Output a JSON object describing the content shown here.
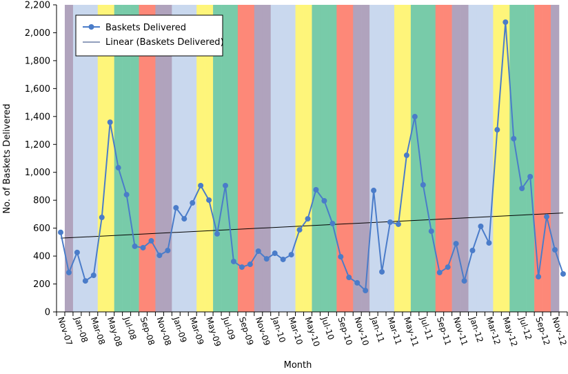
{
  "chart_data": {
    "type": "line",
    "title": "",
    "xlabel": "Month",
    "ylabel": "No. of Baskets Delivered",
    "ylim": [
      0,
      2200
    ],
    "ytick_step": 200,
    "yticks": [
      "0",
      "200",
      "400",
      "600",
      "800",
      "1,000",
      "1,200",
      "1,400",
      "1,600",
      "1,800",
      "2,000",
      "2,200"
    ],
    "grid": false,
    "legend_position": "top-left",
    "categories": [
      "Nov-07",
      "Dec-07",
      "Jan-08",
      "Feb-08",
      "Mar-08",
      "Apr-08",
      "May-08",
      "Jun-08",
      "Jul-08",
      "Aug-08",
      "Sep-08",
      "Oct-08",
      "Nov-08",
      "Dec-08",
      "Jan-09",
      "Feb-09",
      "Mar-09",
      "Apr-09",
      "May-09",
      "Jun-09",
      "Jul-09",
      "Aug-09",
      "Sep-09",
      "Oct-09",
      "Nov-09",
      "Dec-09",
      "Jan-10",
      "Feb-10",
      "Mar-10",
      "Apr-10",
      "May-10",
      "Jun-10",
      "Jul-10",
      "Aug-10",
      "Sep-10",
      "Oct-10",
      "Nov-10",
      "Dec-10",
      "Jan-11",
      "Feb-11",
      "Mar-11",
      "Apr-11",
      "May-11",
      "Jun-11",
      "Jul-11",
      "Aug-11",
      "Sep-11",
      "Oct-11",
      "Nov-11",
      "Dec-11",
      "Jan-12",
      "Feb-12",
      "Mar-12",
      "Apr-12",
      "May-12",
      "Jun-12",
      "Jul-12",
      "Aug-12",
      "Sep-12",
      "Oct-12",
      "Nov-12",
      "Dec-12"
    ],
    "xtick_labels": [
      "Nov-07",
      "Jan-08",
      "Mar-08",
      "May-08",
      "Jul-08",
      "Sep-08",
      "Nov-08",
      "Jan-09",
      "Mar-09",
      "May-09",
      "Jul-09",
      "Sep-09",
      "Nov-09",
      "Jan-10",
      "Mar-10",
      "May-10",
      "Jul-10",
      "Sep-10",
      "Nov-10",
      "Jan-11",
      "Mar-11",
      "May-11",
      "Jul-11",
      "Sep-11",
      "Nov-11",
      "Jan-12",
      "Mar-12",
      "May-12",
      "Jul-12",
      "Sep-12",
      "Nov-12"
    ],
    "series": [
      {
        "name": "Baskets Delivered",
        "color": "#4a7cc9",
        "values": [
          570,
          282,
          426,
          222,
          262,
          677,
          1359,
          1033,
          840,
          470,
          460,
          509,
          405,
          440,
          746,
          667,
          781,
          905,
          801,
          559,
          905,
          361,
          321,
          341,
          435,
          380,
          420,
          376,
          410,
          588,
          667,
          875,
          796,
          633,
          395,
          247,
          208,
          153,
          870,
          287,
          643,
          628,
          1122,
          1399,
          910,
          578,
          282,
          321,
          489,
          222,
          440,
          613,
          494,
          1305,
          2076,
          1241,
          885,
          969,
          252,
          682,
          445,
          272
        ]
      },
      {
        "name": "Linear (Baskets Delivered)",
        "color": "#000000",
        "type": "linear-trendline"
      }
    ],
    "season_bands": {
      "colors": {
        "Nov-Dec": "#b0a3bd",
        "Jan-Mar": "#c9d8ee",
        "Apr-May": "#fef57a",
        "Jun-Aug": "#78cba9",
        "Sep-Oct": "#fd8878"
      },
      "month_season": {
        "Jan": "Jan-Mar",
        "Feb": "Jan-Mar",
        "Mar": "Jan-Mar",
        "Apr": "Apr-May",
        "May": "Apr-May",
        "Jun": "Jun-Aug",
        "Jul": "Jun-Aug",
        "Aug": "Jun-Aug",
        "Sep": "Sep-Oct",
        "Oct": "Sep-Oct",
        "Nov": "Nov-Dec",
        "Dec": "Nov-Dec"
      },
      "first_month": "Dec-07",
      "last_month": "Nov-12"
    }
  }
}
